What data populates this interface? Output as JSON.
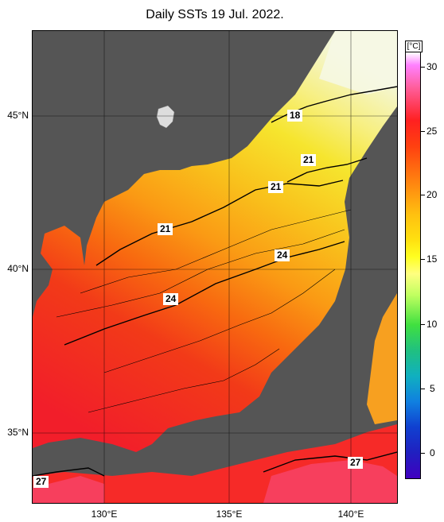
{
  "title": "Daily SSTs 19 Jul. 2022.",
  "lat_labels": [
    "45°N",
    "40°N",
    "35°N"
  ],
  "lon_labels": [
    "130°E",
    "135°E",
    "140°E"
  ],
  "colorbar": {
    "unit": "[°C]",
    "ticks": [
      "30",
      "25",
      "20",
      "15",
      "10",
      "5",
      "0"
    ]
  },
  "contour_labels": [
    "18",
    "21",
    "21",
    "21",
    "24",
    "24",
    "27",
    "27"
  ],
  "colors": {
    "land": "#555555",
    "cold": "#f0f8c8",
    "warm": "#ff2020",
    "hot": "#ff5080"
  }
}
